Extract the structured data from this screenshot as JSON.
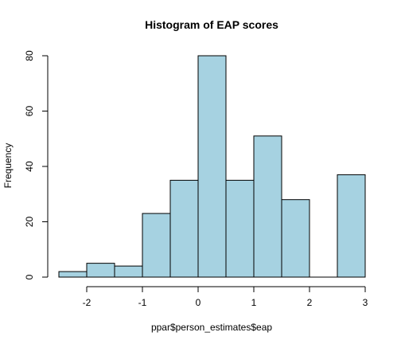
{
  "chart_data": {
    "type": "bar",
    "title": "Histogram of EAP scores",
    "xlabel": "ppar$person_estimates$eap",
    "ylabel": "Frequency",
    "bins": [
      {
        "start": -2.5,
        "end": -2.0,
        "count": 2
      },
      {
        "start": -2.0,
        "end": -1.5,
        "count": 5
      },
      {
        "start": -1.5,
        "end": -1.0,
        "count": 4
      },
      {
        "start": -1.0,
        "end": -0.5,
        "count": 23
      },
      {
        "start": -0.5,
        "end": 0.0,
        "count": 35
      },
      {
        "start": 0.0,
        "end": 0.5,
        "count": 80
      },
      {
        "start": 0.5,
        "end": 1.0,
        "count": 35
      },
      {
        "start": 1.0,
        "end": 1.5,
        "count": 51
      },
      {
        "start": 1.5,
        "end": 2.0,
        "count": 28
      },
      {
        "start": 2.0,
        "end": 2.5,
        "count": 0
      },
      {
        "start": 2.5,
        "end": 3.0,
        "count": 37
      }
    ],
    "xlim": [
      -2.5,
      3.0
    ],
    "ylim": [
      0,
      80
    ],
    "x_ticks": [
      -2,
      -1,
      0,
      1,
      2,
      3
    ],
    "x_tick_labels": [
      "-2",
      "-1",
      "0",
      "1",
      "2",
      "3"
    ],
    "y_ticks": [
      0,
      20,
      40,
      60,
      80
    ],
    "y_tick_labels": [
      "0",
      "20",
      "40",
      "60",
      "80"
    ],
    "bar_color": "#a6d2e1",
    "grid": false,
    "legend": "none"
  }
}
